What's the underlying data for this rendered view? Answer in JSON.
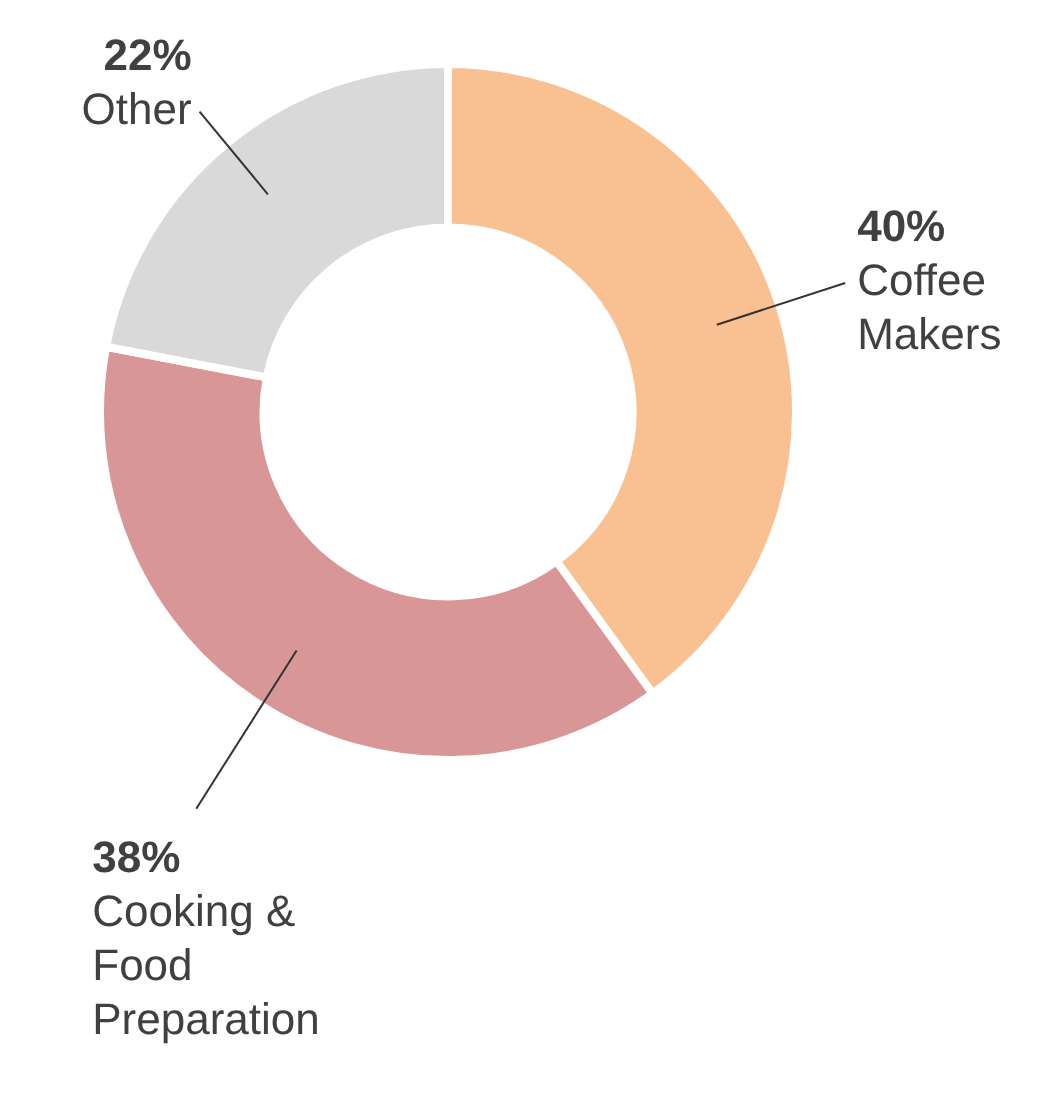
{
  "chart_data": {
    "type": "donut",
    "categories": [
      "Coffee Makers",
      "Cooking & Food Preparation",
      "Other"
    ],
    "values": [
      40,
      38,
      22
    ],
    "colors": [
      "#f9c191",
      "#d99696",
      "#d9d9d9"
    ],
    "value_labels": [
      "40%",
      "38%",
      "22%"
    ],
    "legend": false
  }
}
